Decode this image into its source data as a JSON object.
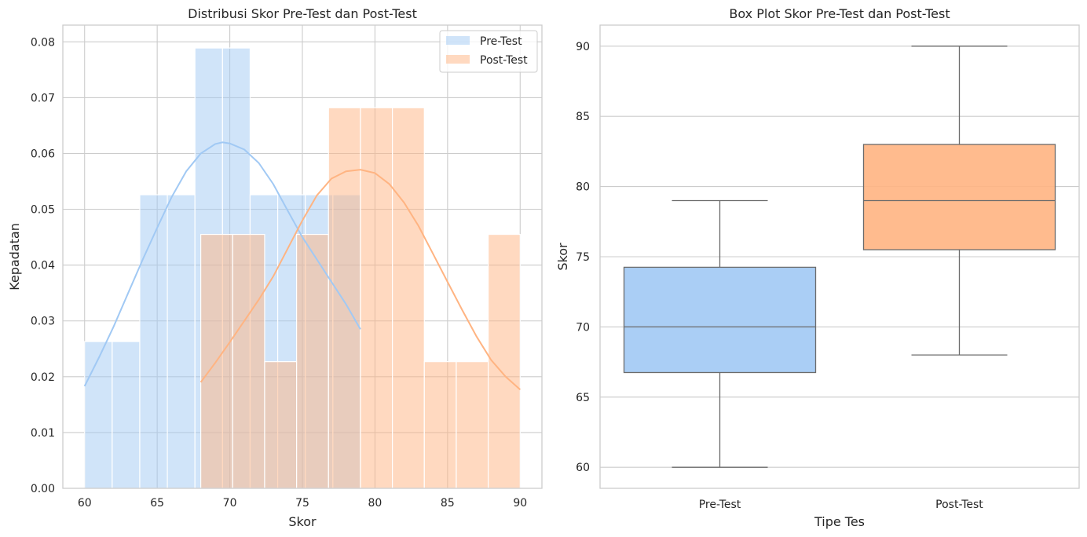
{
  "colors": {
    "pre_fill": "#a1c9f4",
    "post_fill": "#ffb482",
    "box_stroke": "#6b6b6b"
  },
  "chart_data": [
    {
      "type": "histogram",
      "title": "Distribusi Skor Pre-Test dan Post-Test",
      "xlabel": "Skor",
      "ylabel": "Kepadatan",
      "xlim": [
        58.5,
        91.5
      ],
      "ylim": [
        0,
        0.083
      ],
      "xticks": [
        60,
        65,
        70,
        75,
        80,
        85,
        90
      ],
      "yticks": [
        "0.00",
        "0.01",
        "0.02",
        "0.03",
        "0.04",
        "0.05",
        "0.06",
        "0.07",
        "0.08"
      ],
      "grid": true,
      "legend": {
        "position": "top-right",
        "entries": [
          "Pre-Test",
          "Post-Test"
        ]
      },
      "series": [
        {
          "name": "Pre-Test",
          "color": "#a1c9f4",
          "bins": [
            {
              "x0": 60,
              "x1": 61.9,
              "density": 0.0263
            },
            {
              "x0": 61.9,
              "x1": 63.8,
              "density": 0.0263
            },
            {
              "x0": 63.8,
              "x1": 65.7,
              "density": 0.0526
            },
            {
              "x0": 65.7,
              "x1": 67.6,
              "density": 0.0526
            },
            {
              "x0": 67.6,
              "x1": 69.5,
              "density": 0.0789
            },
            {
              "x0": 69.5,
              "x1": 71.4,
              "density": 0.0789
            },
            {
              "x0": 71.4,
              "x1": 73.3,
              "density": 0.0526
            },
            {
              "x0": 73.3,
              "x1": 75.2,
              "density": 0.0526
            },
            {
              "x0": 75.2,
              "x1": 77.1,
              "density": 0.0526
            },
            {
              "x0": 77.1,
              "x1": 79.0,
              "density": 0.0526
            }
          ],
          "kde": {
            "x": [
              60,
              61,
              62,
              63,
              64,
              65,
              66,
              67,
              68,
              69,
              69.5,
              70,
              71,
              72,
              73,
              74,
              75,
              76,
              77,
              78,
              79
            ],
            "y": [
              0.0183,
              0.0235,
              0.029,
              0.035,
              0.041,
              0.0467,
              0.0522,
              0.0568,
              0.06,
              0.0617,
              0.062,
              0.0618,
              0.0607,
              0.0583,
              0.0545,
              0.0497,
              0.045,
              0.041,
              0.037,
              0.033,
              0.0285
            ]
          }
        },
        {
          "name": "Post-Test",
          "color": "#ffb482",
          "bins": [
            {
              "x0": 68,
              "x1": 70.2,
              "density": 0.0455
            },
            {
              "x0": 70.2,
              "x1": 72.4,
              "density": 0.0455
            },
            {
              "x0": 72.4,
              "x1": 74.6,
              "density": 0.0227
            },
            {
              "x0": 74.6,
              "x1": 76.8,
              "density": 0.0455
            },
            {
              "x0": 76.8,
              "x1": 79.0,
              "density": 0.0682
            },
            {
              "x0": 79.0,
              "x1": 81.2,
              "density": 0.0682
            },
            {
              "x0": 81.2,
              "x1": 83.4,
              "density": 0.0682
            },
            {
              "x0": 83.4,
              "x1": 85.6,
              "density": 0.0227
            },
            {
              "x0": 85.6,
              "x1": 87.8,
              "density": 0.0227
            },
            {
              "x0": 87.8,
              "x1": 90.0,
              "density": 0.0455
            }
          ],
          "kde": {
            "x": [
              68,
              69,
              70,
              71,
              72,
              73,
              74,
              75,
              76,
              77,
              78,
              79,
              80,
              81,
              82,
              83,
              84,
              85,
              86,
              87,
              88,
              89,
              90
            ],
            "y": [
              0.019,
              0.0225,
              0.0262,
              0.03,
              0.0338,
              0.038,
              0.043,
              0.048,
              0.0525,
              0.0555,
              0.0568,
              0.0571,
              0.0565,
              0.0545,
              0.0512,
              0.047,
              0.042,
              0.037,
              0.032,
              0.0272,
              0.023,
              0.02,
              0.0177
            ]
          }
        }
      ]
    },
    {
      "type": "box",
      "title": "Box Plot Skor Pre-Test dan Post-Test",
      "xlabel": "Tipe Tes",
      "ylabel": "Skor",
      "ylim": [
        58.5,
        91.5
      ],
      "yticks": [
        60,
        65,
        70,
        75,
        80,
        85,
        90
      ],
      "grid": true,
      "categories": [
        "Pre-Test",
        "Post-Test"
      ],
      "boxes": [
        {
          "name": "Pre-Test",
          "color": "#a1c9f4",
          "whisker_low": 60,
          "q1": 66.75,
          "median": 70,
          "q3": 74.25,
          "whisker_high": 79
        },
        {
          "name": "Post-Test",
          "color": "#ffb482",
          "whisker_low": 68,
          "q1": 75.5,
          "median": 79,
          "q3": 83,
          "whisker_high": 90
        }
      ]
    }
  ]
}
